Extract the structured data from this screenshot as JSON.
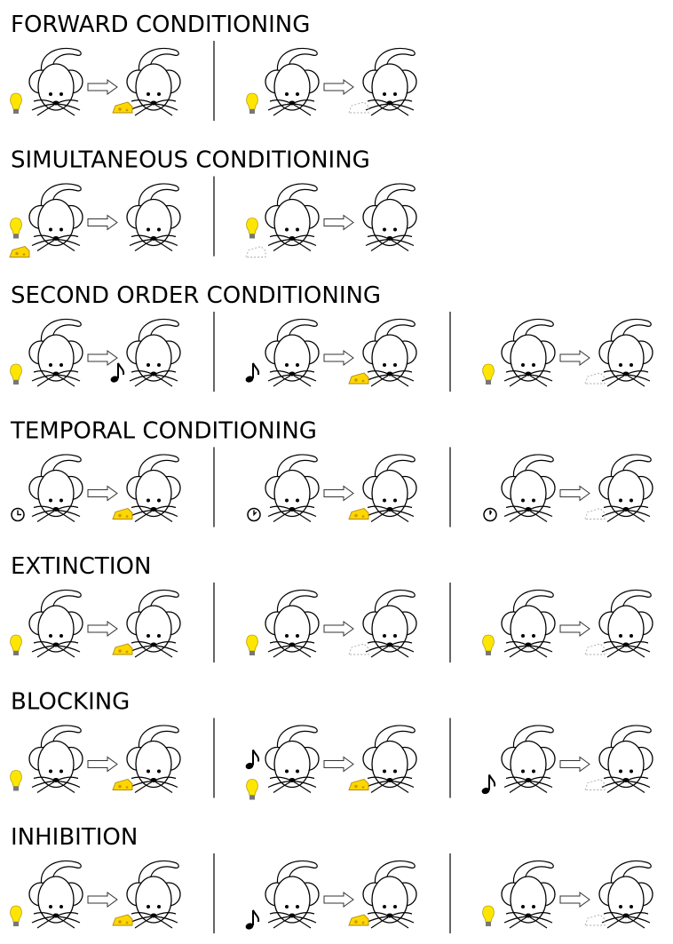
{
  "sections": [
    {
      "title": "FORWARD CONDITIONING"
    },
    {
      "title": "SIMULTANEOUS CONDITIONING"
    },
    {
      "title": "SECOND ORDER CONDITIONING"
    },
    {
      "title": "TEMPORAL CONDITIONING"
    },
    {
      "title": "EXTINCTION"
    },
    {
      "title": "BLOCKING"
    },
    {
      "title": "INHIBITION"
    }
  ]
}
